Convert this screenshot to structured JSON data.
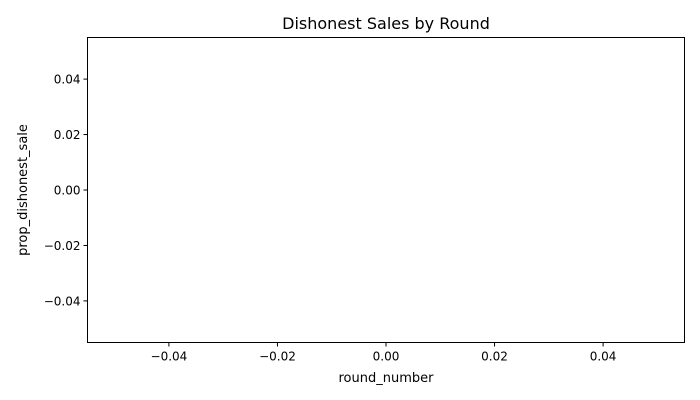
{
  "chart_data": {
    "type": "line",
    "title": "Dishonest Sales by Round",
    "xlabel": "round_number",
    "ylabel": "prop_dishonest_sale",
    "xlim": [
      -0.055,
      0.055
    ],
    "ylim": [
      -0.055,
      0.055
    ],
    "x_ticks": [
      -0.04,
      -0.02,
      0.0,
      0.02,
      0.04
    ],
    "x_tick_labels": [
      "−0.04",
      "−0.02",
      "0.00",
      "0.02",
      "0.04"
    ],
    "y_ticks": [
      -0.04,
      -0.02,
      0.0,
      0.02,
      0.04
    ],
    "y_tick_labels": [
      "−0.04",
      "−0.02",
      "0.00",
      "0.02",
      "0.04"
    ],
    "series": [
      {
        "x": [],
        "y": []
      }
    ],
    "grid": false,
    "legend": "none"
  }
}
